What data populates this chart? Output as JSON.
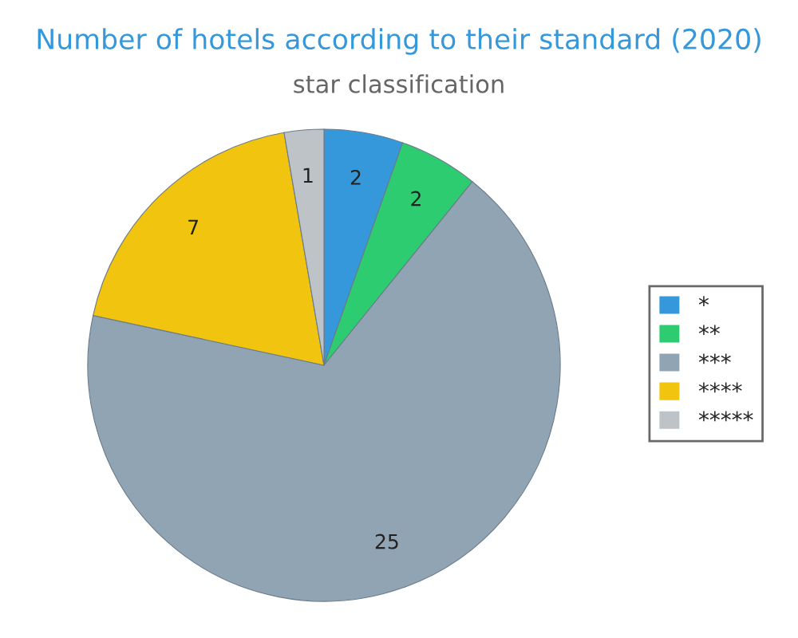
{
  "chart_data": {
    "type": "pie",
    "title": "Number of hotels according to their standard (2020)",
    "subtitle": "star classification",
    "categories": [
      "*",
      "**",
      "***",
      "****",
      "*****"
    ],
    "values": [
      2,
      2,
      25,
      7,
      1
    ],
    "colors": [
      "#3498db",
      "#2ecc71",
      "#91a4b4",
      "#f1c40f",
      "#bdc3c7"
    ],
    "data_labels": true,
    "legend": "right"
  }
}
